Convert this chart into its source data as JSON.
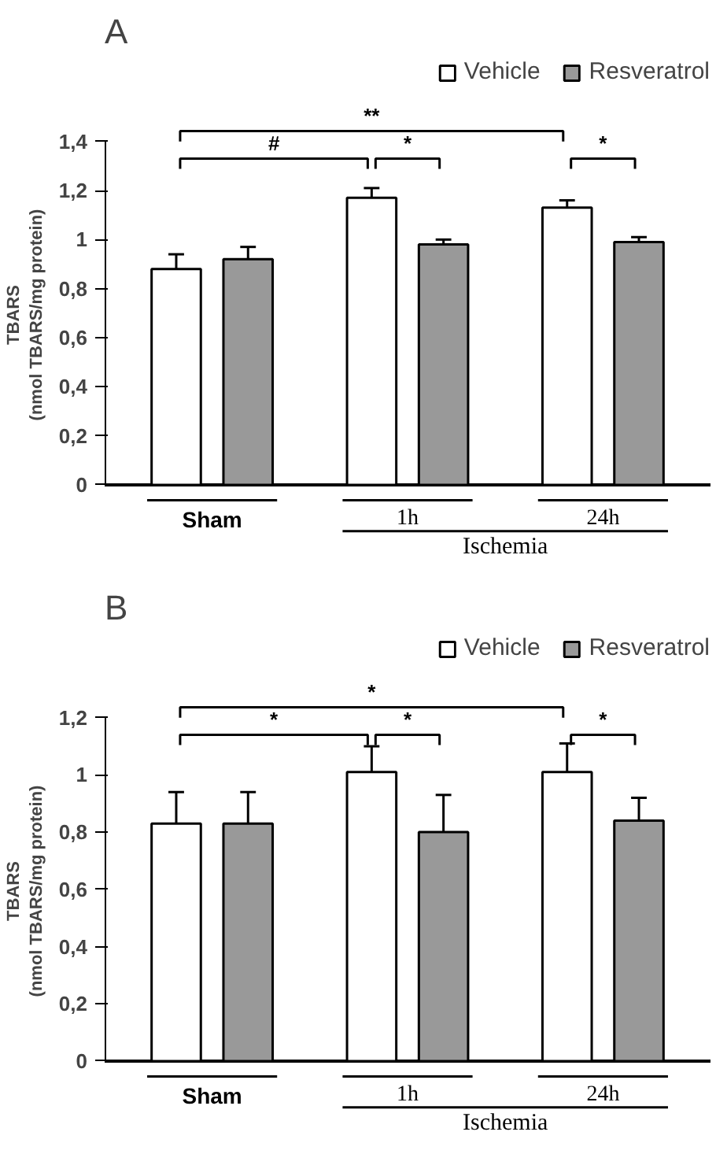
{
  "chart_data": [
    {
      "type": "bar",
      "title": "A",
      "ylabel": "TBARS\n(nmol TBARS/mg protein)",
      "categories": [
        "Sham",
        "1h",
        "24h"
      ],
      "series": [
        {
          "name": "Vehicle",
          "color": "#ffffff",
          "values": [
            0.88,
            1.17,
            1.13
          ],
          "errors": [
            0.06,
            0.04,
            0.03
          ]
        },
        {
          "name": "Resveratrol",
          "color": "#999999",
          "values": [
            0.92,
            0.98,
            0.99
          ],
          "errors": [
            0.05,
            0.02,
            0.02
          ]
        }
      ],
      "ylim": [
        0,
        1.4
      ],
      "yticks": [
        0,
        {
          "value": 0.2,
          "label": "0,2"
        },
        {
          "value": 0.4,
          "label": "0,4"
        },
        {
          "value": 0.6,
          "label": "0,6"
        },
        {
          "value": 0.8,
          "label": "0,8"
        },
        1,
        {
          "value": 1.2,
          "label": "1,2"
        },
        {
          "value": 1.4,
          "label": "1,4"
        }
      ],
      "annotations": [
        "**",
        "#",
        "*",
        "*",
        "Ischemia"
      ],
      "legend": "top right",
      "grid": false
    },
    {
      "type": "bar",
      "title": "B",
      "ylabel": "TBARS\n(nmol TBARS/mg protein)",
      "categories": [
        "Sham",
        "1h",
        "24h"
      ],
      "series": [
        {
          "name": "Vehicle",
          "color": "#ffffff",
          "values": [
            0.83,
            1.01,
            1.01
          ],
          "errors": [
            0.11,
            0.09,
            0.1
          ]
        },
        {
          "name": "Resveratrol",
          "color": "#999999",
          "values": [
            0.83,
            0.8,
            0.84
          ],
          "errors": [
            0.11,
            0.13,
            0.08
          ]
        }
      ],
      "ylim": [
        0,
        1.2
      ],
      "yticks": [
        0,
        {
          "value": 0.2,
          "label": "0,2"
        },
        {
          "value": 0.4,
          "label": "0,4"
        },
        {
          "value": 0.6,
          "label": "0,6"
        },
        {
          "value": 0.8,
          "label": "0,8"
        },
        1,
        {
          "value": 1.2,
          "label": "1,2"
        }
      ],
      "annotations": [
        "*",
        "*",
        "*",
        "*",
        "Ischemia"
      ],
      "legend": "top right",
      "grid": false
    }
  ]
}
